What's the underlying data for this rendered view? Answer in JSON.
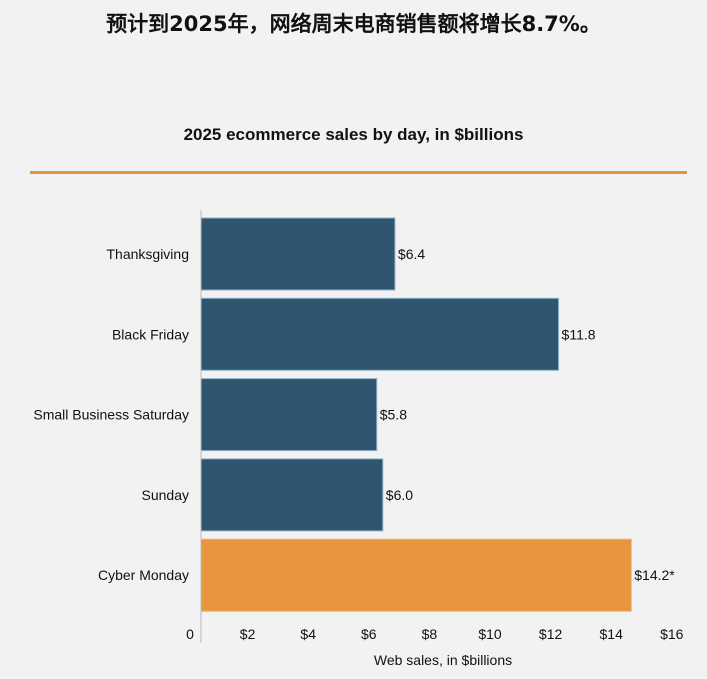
{
  "headline": "预计到2025年，网络周末电商销售额将增长8.7%。",
  "chart_data": {
    "type": "bar",
    "orientation": "horizontal",
    "title": "2025 ecommerce sales by day, in $billions",
    "xlabel": "Web sales, in $billions",
    "ylabel": "",
    "categories": [
      "Thanksgiving",
      "Black Friday",
      "Small Business Saturday",
      "Sunday",
      "Cyber Monday"
    ],
    "values": [
      6.4,
      11.8,
      5.8,
      6.0,
      14.2
    ],
    "data_labels": [
      "$6.4",
      "$11.8",
      "$5.8",
      "$6.0",
      "$14.2*"
    ],
    "colors": [
      "#30566f",
      "#30566f",
      "#30566f",
      "#30566f",
      "#e8963e"
    ],
    "xlim": [
      0,
      16
    ],
    "xticks": [
      0,
      2,
      4,
      6,
      8,
      10,
      12,
      14,
      16
    ],
    "xtick_labels": [
      "0",
      "$2",
      "$4",
      "$6",
      "$8",
      "$10",
      "$12",
      "$14",
      "$16"
    ],
    "grid": false
  },
  "accent_color": "#e8923a"
}
